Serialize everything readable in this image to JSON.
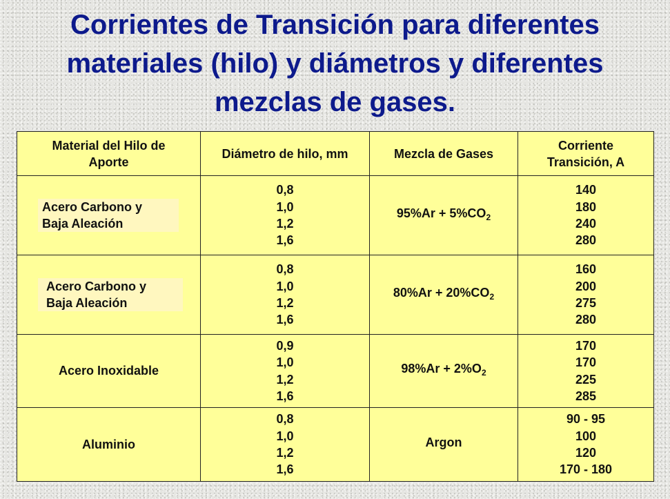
{
  "title": {
    "line1": "Corrientes de Transición para diferentes",
    "line2": "materiales (hilo) y diámetros y diferentes",
    "line3": "mezclas de gases."
  },
  "table": {
    "headers": {
      "material_line1": "Material del Hilo de",
      "material_line2": "Aporte",
      "diameter": "Diámetro de hilo, mm",
      "gas": "Mezcla de Gases",
      "current_line1": "Corriente",
      "current_line2": "Transición, A"
    },
    "rows": [
      {
        "material": [
          "Acero Carbono y",
          "Baja Aleación"
        ],
        "diameters": [
          "0,8",
          "1,0",
          "1,2",
          "1,6"
        ],
        "gas_prefix": "95%Ar + 5%CO",
        "gas_sub": "2",
        "currents": [
          "140",
          "180",
          "240",
          "280"
        ]
      },
      {
        "material": [
          "Acero Carbono y",
          "Baja Aleación"
        ],
        "diameters": [
          "0,8",
          "1,0",
          "1,2",
          "1,6"
        ],
        "gas_prefix": "80%Ar + 20%CO",
        "gas_sub": "2",
        "currents": [
          "160",
          "200",
          "275",
          "280"
        ]
      },
      {
        "material": [
          "Acero Inoxidable"
        ],
        "diameters": [
          "0,9",
          "1,0",
          "1,2",
          "1,6"
        ],
        "gas_prefix": "98%Ar + 2%O",
        "gas_sub": "2",
        "currents": [
          "170",
          "170",
          "225",
          "285"
        ]
      },
      {
        "material": [
          "Aluminio"
        ],
        "diameters": [
          "0,8",
          "1,0",
          "1,2",
          "1,6"
        ],
        "gas_prefix": "Argon",
        "gas_sub": "",
        "currents": [
          "90 - 95",
          "100",
          "120",
          "170 - 180"
        ]
      }
    ]
  },
  "colors": {
    "title": "#0d1a8c",
    "table_fill": "#ffff99",
    "highlight_fill": "#fff7bf",
    "border": "#222222"
  }
}
